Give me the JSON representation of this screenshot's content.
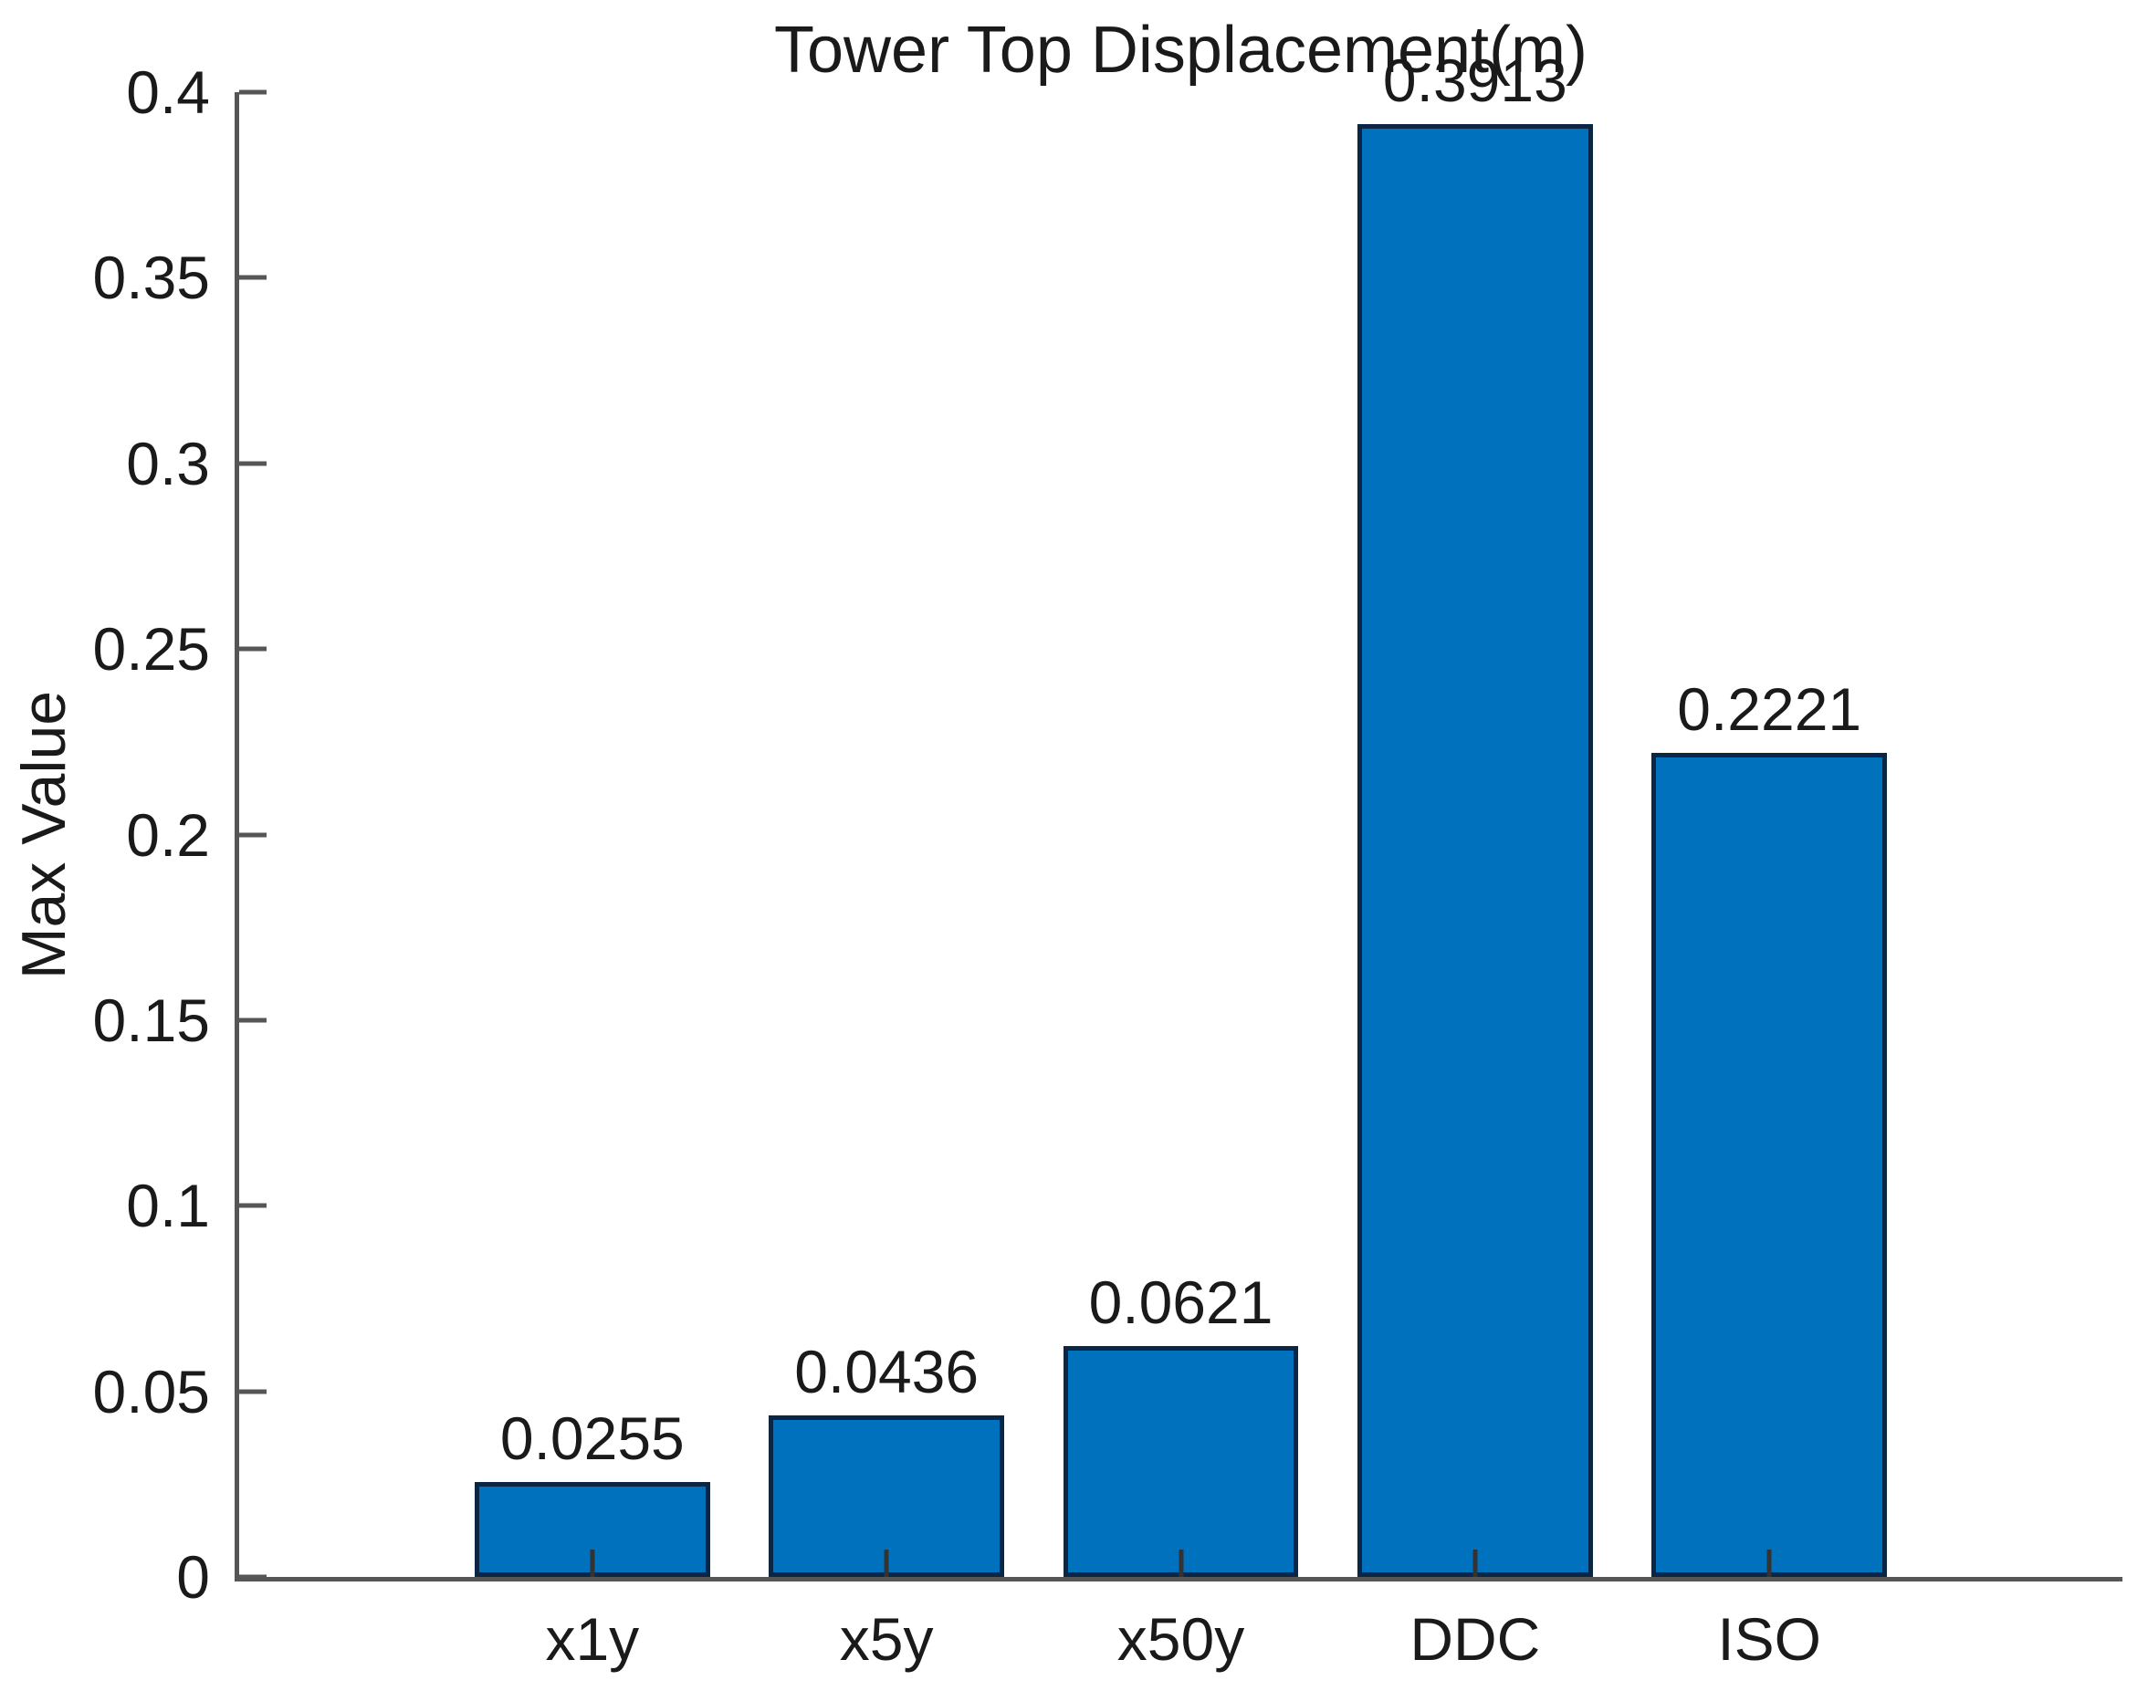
{
  "chart_data": {
    "type": "bar",
    "title": "Tower Top Displacement(m)",
    "xlabel": "",
    "ylabel": "Max Value",
    "categories": [
      "x1y",
      "x5y",
      "x50y",
      "DDC",
      "ISO"
    ],
    "values": [
      0.0255,
      0.0436,
      0.0621,
      0.3913,
      0.2221
    ],
    "bar_labels": [
      "0.0255",
      "0.0436",
      "0.0621",
      "0.3913",
      "0.2221"
    ],
    "ylim": [
      0,
      0.4
    ],
    "yticks": [
      0,
      0.05,
      0.1,
      0.15,
      0.2,
      0.25,
      0.3,
      0.35,
      0.4
    ],
    "ytick_labels": [
      "0",
      "0.05",
      "0.1",
      "0.15",
      "0.2",
      "0.25",
      "0.3",
      "0.35",
      "0.4"
    ],
    "bar_width_fraction": 0.8,
    "grid": false,
    "legend": false,
    "tick_direction": "in",
    "colors": {
      "bar_fill": "#0072BD",
      "bar_edge": "#0B2545",
      "axis": "#565656",
      "text": "#1A1A1A"
    }
  }
}
